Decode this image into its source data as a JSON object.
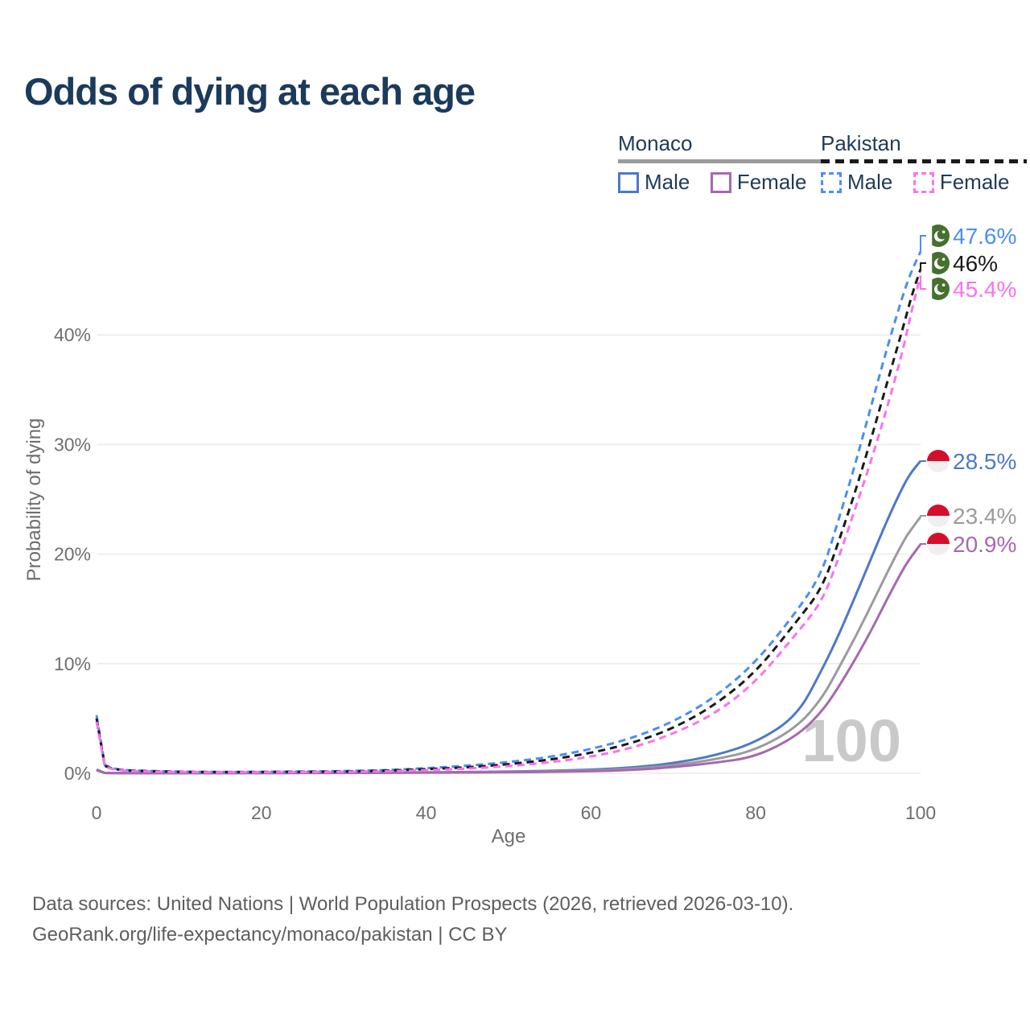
{
  "title": {
    "text": "Odds of dying at each age",
    "color": "#1b3a5c"
  },
  "legend": {
    "groups": [
      {
        "name": "Monaco",
        "line_style": "solid",
        "line_color": "#9b9b9b",
        "items": [
          {
            "label": "Male",
            "color": "#4d79c7"
          },
          {
            "label": "Female",
            "color": "#a768b0"
          }
        ]
      },
      {
        "name": "Pakistan",
        "line_style": "dashed",
        "line_color": "#1a1a1a",
        "items": [
          {
            "label": "Male",
            "color": "#4a8ef5"
          },
          {
            "label": "Female",
            "color": "#ff6ff0"
          }
        ]
      }
    ]
  },
  "chart_data": {
    "type": "line",
    "xlabel": "Age",
    "ylabel": "Probability of dying",
    "xlim": [
      0,
      100
    ],
    "ylim": [
      0,
      50
    ],
    "x_ticks": [
      0,
      20,
      40,
      60,
      80,
      100
    ],
    "y_ticks": [
      "0%",
      "10%",
      "20%",
      "30%",
      "40%"
    ],
    "y_tick_values": [
      0,
      10,
      20,
      30,
      40
    ],
    "grid": true,
    "legend_position": "top-right",
    "watermark": "100",
    "ages": [
      0,
      1,
      2,
      3,
      4,
      5,
      10,
      15,
      20,
      25,
      30,
      35,
      40,
      45,
      50,
      55,
      60,
      65,
      70,
      75,
      80,
      85,
      88,
      90,
      92,
      94,
      96,
      98,
      99,
      100
    ],
    "series": [
      {
        "name": "Pakistan Male",
        "country": "Pakistan",
        "sex": "male",
        "color": "#4a8ef5",
        "dashed": true,
        "end_label": "47.6%",
        "values_pct": [
          5.3,
          0.75,
          0.45,
          0.33,
          0.27,
          0.24,
          0.15,
          0.13,
          0.14,
          0.16,
          0.2,
          0.28,
          0.47,
          0.69,
          1.01,
          1.48,
          2.2,
          3.2,
          4.7,
          6.9,
          10.1,
          14.8,
          18.2,
          23,
          28,
          33.5,
          39,
          44,
          46,
          47.6
        ]
      },
      {
        "name": "Pakistan Both sexes",
        "country": "Pakistan",
        "sex": "both",
        "color": "#1a1a1a",
        "dashed": true,
        "end_label": "46%",
        "values_pct": [
          5.0,
          0.68,
          0.41,
          0.3,
          0.25,
          0.22,
          0.13,
          0.11,
          0.12,
          0.14,
          0.16,
          0.24,
          0.37,
          0.54,
          0.82,
          1.23,
          1.85,
          2.75,
          4.1,
          6.2,
          9.2,
          13.9,
          16.8,
          21,
          25.5,
          30.5,
          35.8,
          41,
          43.8,
          46
        ]
      },
      {
        "name": "Pakistan Female",
        "country": "Pakistan",
        "sex": "female",
        "color": "#ff6ff0",
        "dashed": true,
        "end_label": "45.4%",
        "values_pct": [
          4.7,
          0.62,
          0.37,
          0.27,
          0.22,
          0.19,
          0.11,
          0.1,
          0.1,
          0.11,
          0.13,
          0.18,
          0.28,
          0.42,
          0.65,
          0.99,
          1.5,
          2.3,
          3.6,
          5.4,
          8.3,
          12.8,
          15.6,
          19.5,
          24,
          28.5,
          33.5,
          39,
          42.5,
          45.4
        ]
      },
      {
        "name": "Monaco Male",
        "country": "Monaco",
        "sex": "male",
        "color": "#4d79c7",
        "dashed": false,
        "end_label": "28.5%",
        "values_pct": [
          0.35,
          0.04,
          0.03,
          0.025,
          0.02,
          0.02,
          0.015,
          0.02,
          0.035,
          0.045,
          0.055,
          0.07,
          0.09,
          0.12,
          0.16,
          0.22,
          0.33,
          0.52,
          0.92,
          1.6,
          2.8,
          5.2,
          9.4,
          12.5,
          16,
          19.6,
          23.2,
          26.4,
          27.6,
          28.5
        ]
      },
      {
        "name": "Monaco Both sexes",
        "country": "Monaco",
        "sex": "both",
        "color": "#9b9b9b",
        "dashed": false,
        "end_label": "23.4%",
        "values_pct": [
          0.3,
          0.035,
          0.025,
          0.02,
          0.018,
          0.015,
          0.012,
          0.017,
          0.028,
          0.035,
          0.045,
          0.055,
          0.07,
          0.09,
          0.12,
          0.17,
          0.25,
          0.4,
          0.72,
          1.25,
          2.1,
          4.2,
          6.8,
          9.5,
          12.3,
          15.3,
          18.4,
          21.3,
          22.4,
          23.4
        ]
      },
      {
        "name": "Monaco Female",
        "country": "Monaco",
        "sex": "female",
        "color": "#a768b0",
        "dashed": false,
        "end_label": "20.9%",
        "values_pct": [
          0.28,
          0.03,
          0.02,
          0.018,
          0.015,
          0.012,
          0.01,
          0.014,
          0.02,
          0.025,
          0.032,
          0.042,
          0.055,
          0.07,
          0.095,
          0.13,
          0.19,
          0.3,
          0.55,
          0.95,
          1.5,
          3.4,
          5.6,
          7.8,
          10.3,
          13.0,
          16.0,
          18.8,
          19.9,
          20.9
        ]
      }
    ],
    "flag_colors": {
      "Pakistan": {
        "green": "#45702f",
        "white": "#ffffff"
      },
      "Monaco": {
        "red": "#d30f2c",
        "white": "#efefef"
      }
    }
  },
  "axis_colors": {
    "tick": "#6e6e6e",
    "grid": "#eaeaea",
    "watermark": "#c9c9c9"
  },
  "footer": {
    "line1": "Data sources: United Nations | World Population Prospects (2026, retrieved 2026-03-10).",
    "line2": "GeoRank.org/life-expectancy/monaco/pakistan | CC BY"
  }
}
